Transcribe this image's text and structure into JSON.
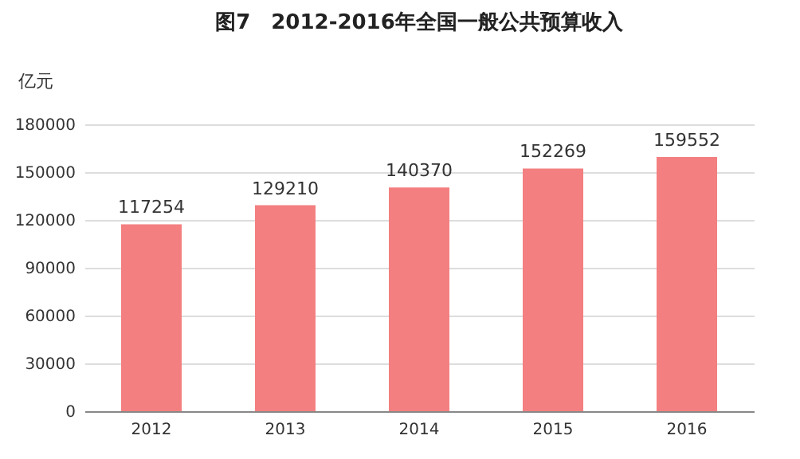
{
  "chart_data": {
    "type": "bar",
    "title": "图7　2012-2016年全国一般公共预算收入",
    "ylabel": "亿元",
    "categories": [
      "2012",
      "2013",
      "2014",
      "2015",
      "2016"
    ],
    "values": [
      117254,
      129210,
      140370,
      152269,
      159552
    ],
    "color": "#f47f80",
    "ylim": [
      0,
      180000
    ],
    "yticks": [
      0,
      30000,
      60000,
      90000,
      120000,
      150000,
      180000
    ],
    "grid": "y",
    "data_labels": true
  }
}
